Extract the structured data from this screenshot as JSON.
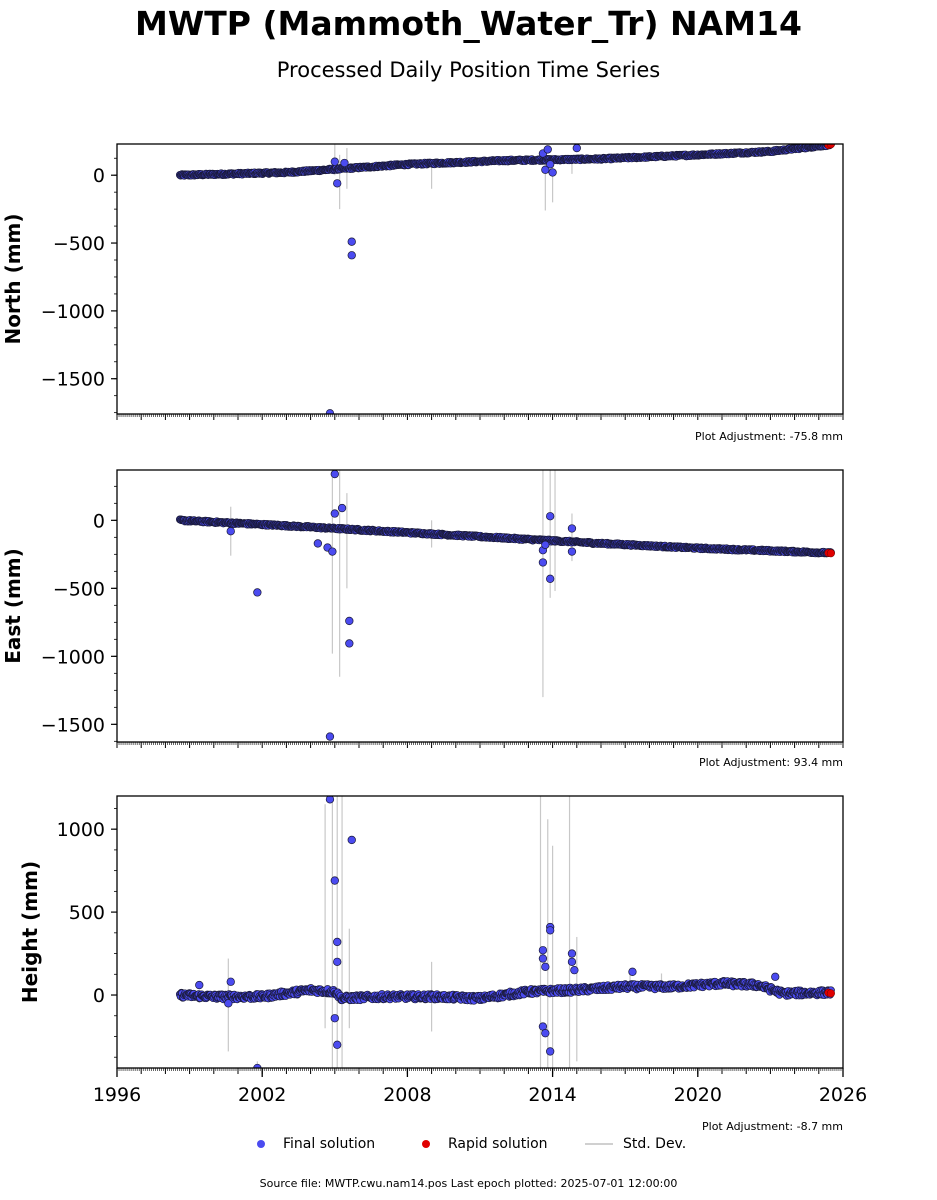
{
  "title": "MWTP (Mammoth_Water_Tr) NAM14",
  "subtitle": "Processed Daily Position Time Series",
  "legend": {
    "final_label": "Final solution",
    "rapid_label": "Rapid solution",
    "stddev_label": "Std. Dev.",
    "final_color": "#4b4bf0",
    "rapid_color": "#e00000",
    "stddev_color": "#d0d0d0"
  },
  "source_text": "Source file: MWTP.cwu.nam14.pos  Last epoch plotted: 2025-07-01 12:00:00",
  "chart_data": [
    {
      "type": "scatter",
      "ylabel": "North (mm)",
      "adjustment": "Plot Adjustment: -75.8 mm",
      "xlim": [
        1996,
        2026
      ],
      "ylim": [
        -1760,
        230
      ],
      "yticks": [
        0,
        -500,
        -1000,
        -1500
      ],
      "ytick_labels": [
        "0",
        "−500",
        "−1000",
        "−1500"
      ],
      "trend": [
        [
          1998.6,
          0
        ],
        [
          2003.0,
          20
        ],
        [
          2008.0,
          80
        ],
        [
          2012.0,
          108
        ],
        [
          2016.0,
          120
        ],
        [
          2020.0,
          150
        ],
        [
          2023.0,
          175
        ],
        [
          2025.5,
          225
        ]
      ],
      "outliers": [
        [
          2005.0,
          100
        ],
        [
          2005.1,
          -60
        ],
        [
          2005.4,
          90
        ],
        [
          2005.7,
          -490
        ],
        [
          2005.7,
          -590
        ],
        [
          2004.8,
          -1755
        ],
        [
          2013.6,
          160
        ],
        [
          2013.8,
          190
        ],
        [
          2013.7,
          40
        ],
        [
          2013.9,
          80
        ],
        [
          2014.0,
          20
        ],
        [
          2015.0,
          200
        ]
      ],
      "stddev": [
        [
          2005.0,
          0,
          230
        ],
        [
          2005.2,
          -250,
          150
        ],
        [
          2005.5,
          -100,
          200
        ],
        [
          2009.0,
          -100,
          100
        ],
        [
          2013.7,
          -260,
          200
        ],
        [
          2014.0,
          -200,
          150
        ],
        [
          2014.8,
          10,
          150
        ]
      ],
      "rapid": [
        [
          2025.4,
          222
        ],
        [
          2025.5,
          228
        ]
      ],
      "grid": false
    },
    {
      "type": "scatter",
      "ylabel": "East (mm)",
      "adjustment": "Plot Adjustment: 93.4 mm",
      "xlim": [
        1996,
        2026
      ],
      "ylim": [
        -1630,
        370
      ],
      "yticks": [
        0,
        -500,
        -1000,
        -1500
      ],
      "ytick_labels": [
        "0",
        "−500",
        "−1000",
        "−1500"
      ],
      "trend": [
        [
          1998.6,
          0
        ],
        [
          2003.0,
          -40
        ],
        [
          2008.0,
          -90
        ],
        [
          2012.0,
          -130
        ],
        [
          2016.0,
          -170
        ],
        [
          2020.0,
          -205
        ],
        [
          2025.5,
          -240
        ]
      ],
      "outliers": [
        [
          2000.7,
          -80
        ],
        [
          2001.8,
          -530
        ],
        [
          2004.3,
          -170
        ],
        [
          2004.7,
          -200
        ],
        [
          2004.9,
          -230
        ],
        [
          2005.0,
          340
        ],
        [
          2005.0,
          50
        ],
        [
          2005.3,
          90
        ],
        [
          2005.6,
          -740
        ],
        [
          2005.6,
          -905
        ],
        [
          2004.8,
          -1590
        ],
        [
          2013.6,
          -220
        ],
        [
          2013.6,
          -310
        ],
        [
          2013.7,
          -180
        ],
        [
          2013.9,
          -430
        ],
        [
          2013.9,
          30
        ],
        [
          2014.8,
          -60
        ],
        [
          2014.8,
          -230
        ]
      ],
      "stddev": [
        [
          2000.7,
          -260,
          100
        ],
        [
          2004.9,
          -980,
          370
        ],
        [
          2005.2,
          -1150,
          370
        ],
        [
          2005.5,
          -500,
          200
        ],
        [
          2009.0,
          -200,
          0
        ],
        [
          2013.6,
          -1300,
          370
        ],
        [
          2013.9,
          -570,
          370
        ],
        [
          2014.1,
          -520,
          370
        ],
        [
          2014.8,
          -300,
          50
        ]
      ],
      "rapid": [
        [
          2025.4,
          -240
        ],
        [
          2025.5,
          -242
        ]
      ],
      "grid": false
    },
    {
      "type": "scatter",
      "ylabel": "Height (mm)",
      "adjustment": "Plot Adjustment: -8.7 mm",
      "xlim": [
        1996,
        2026
      ],
      "ylim": [
        -440,
        1200
      ],
      "yticks": [
        0,
        500,
        1000
      ],
      "ytick_labels": [
        "0",
        "500",
        "1000"
      ],
      "xticks": [
        1996,
        2002,
        2008,
        2014,
        2020,
        2026
      ],
      "xtick_labels": [
        "1996",
        "2002",
        "2008",
        "2014",
        "2020",
        "2026"
      ],
      "trend": [
        [
          1998.6,
          0
        ],
        [
          2000.0,
          -10
        ],
        [
          2002.0,
          -10
        ],
        [
          2004.0,
          30
        ],
        [
          2005.0,
          20
        ],
        [
          2005.3,
          -20
        ],
        [
          2007.0,
          -10
        ],
        [
          2009.0,
          -10
        ],
        [
          2011.0,
          -20
        ],
        [
          2013.0,
          20
        ],
        [
          2015.0,
          30
        ],
        [
          2017.0,
          50
        ],
        [
          2019.0,
          50
        ],
        [
          2021.0,
          70
        ],
        [
          2022.5,
          60
        ],
        [
          2023.5,
          10
        ],
        [
          2025.5,
          15
        ]
      ],
      "outliers": [
        [
          1999.4,
          60
        ],
        [
          2000.6,
          -50
        ],
        [
          2000.7,
          80
        ],
        [
          2001.8,
          -440
        ],
        [
          2004.8,
          1180
        ],
        [
          2005.0,
          690
        ],
        [
          2005.1,
          320
        ],
        [
          2005.1,
          200
        ],
        [
          2005.0,
          -140
        ],
        [
          2005.1,
          -300
        ],
        [
          2005.7,
          935
        ],
        [
          2013.6,
          270
        ],
        [
          2013.6,
          220
        ],
        [
          2013.7,
          170
        ],
        [
          2013.6,
          -190
        ],
        [
          2013.7,
          -230
        ],
        [
          2013.9,
          410
        ],
        [
          2013.9,
          390
        ],
        [
          2013.9,
          -340
        ],
        [
          2014.8,
          250
        ],
        [
          2014.8,
          200
        ],
        [
          2014.9,
          150
        ],
        [
          2017.3,
          140
        ],
        [
          2023.2,
          110
        ]
      ],
      "stddev": [
        [
          2000.6,
          -340,
          220
        ],
        [
          2001.8,
          -440,
          -400
        ],
        [
          2004.6,
          -200,
          1150
        ],
        [
          2004.9,
          -440,
          1200
        ],
        [
          2005.1,
          -440,
          1200
        ],
        [
          2005.3,
          -440,
          1200
        ],
        [
          2005.6,
          -200,
          400
        ],
        [
          2009.0,
          -220,
          200
        ],
        [
          2013.5,
          -440,
          1200
        ],
        [
          2013.8,
          -440,
          1060
        ],
        [
          2014.0,
          -440,
          900
        ],
        [
          2014.7,
          -440,
          1200
        ],
        [
          2015.0,
          -400,
          350
        ],
        [
          2017.2,
          40,
          160
        ],
        [
          2018.5,
          30,
          130
        ]
      ],
      "rapid": [
        [
          2025.4,
          14
        ],
        [
          2025.5,
          10
        ]
      ],
      "grid": false
    }
  ]
}
